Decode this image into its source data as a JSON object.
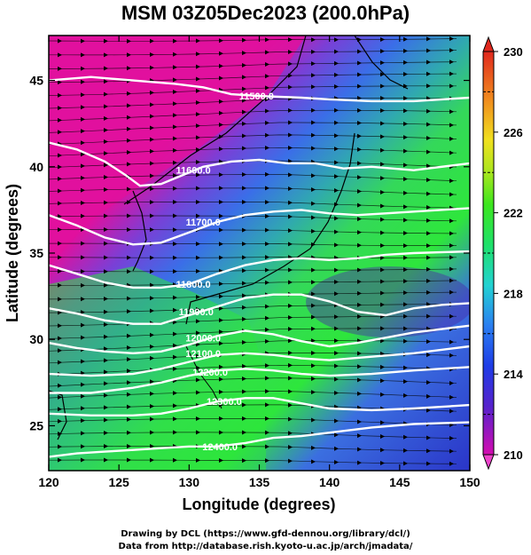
{
  "title": "MSM 03Z05Dec2023 (200.0hPa)",
  "chart_data": {
    "type": "map",
    "x_axis": {
      "label": "Longitude (degrees)",
      "range": [
        120,
        150
      ],
      "ticks": [
        120,
        125,
        130,
        135,
        140,
        145,
        150
      ]
    },
    "y_axis": {
      "label": "Latitude  (degrees)",
      "range": [
        22.4,
        47.6
      ],
      "ticks": [
        25,
        30,
        35,
        40,
        45
      ]
    },
    "colorbar": {
      "range": [
        210,
        230
      ],
      "ticks": [
        210,
        214,
        218,
        222,
        226,
        230
      ],
      "dashed_levels": [
        212,
        216,
        220,
        224,
        228
      ]
    },
    "contours": [
      {
        "label": "11500.0",
        "label_pos": [
          134.8,
          44.1
        ],
        "points": [
          [
            120,
            45.0
          ],
          [
            123,
            45.2
          ],
          [
            126,
            45.0
          ],
          [
            129,
            44.8
          ],
          [
            131,
            44.6
          ],
          [
            133,
            44.2
          ],
          [
            135,
            44.1
          ],
          [
            138,
            44.0
          ],
          [
            140,
            43.9
          ],
          [
            143,
            43.8
          ],
          [
            146,
            43.8
          ],
          [
            150,
            44.0
          ]
        ]
      },
      {
        "label": "11600.0",
        "label_pos": [
          130.3,
          39.8
        ],
        "points": [
          [
            120,
            41.4
          ],
          [
            122,
            41.0
          ],
          [
            124,
            40.3
          ],
          [
            125.5,
            39.5
          ],
          [
            126.5,
            38.9
          ],
          [
            128,
            39.0
          ],
          [
            129.5,
            39.5
          ],
          [
            131,
            40.0
          ],
          [
            133,
            40.3
          ],
          [
            135,
            40.4
          ],
          [
            137,
            40.2
          ],
          [
            139,
            40.2
          ],
          [
            141,
            39.9
          ],
          [
            143,
            40.0
          ],
          [
            146,
            39.8
          ],
          [
            150,
            40.2
          ]
        ]
      },
      {
        "label": "11700.0",
        "label_pos": [
          131.0,
          36.8
        ],
        "points": [
          [
            120,
            37.2
          ],
          [
            122,
            36.6
          ],
          [
            124,
            35.9
          ],
          [
            126,
            35.5
          ],
          [
            128,
            35.6
          ],
          [
            130,
            36.2
          ],
          [
            132,
            36.8
          ],
          [
            134,
            37.2
          ],
          [
            136,
            37.4
          ],
          [
            138,
            37.5
          ],
          [
            140,
            37.3
          ],
          [
            142,
            37.2
          ],
          [
            144,
            37.3
          ],
          [
            146,
            37.4
          ],
          [
            150,
            37.6
          ]
        ]
      },
      {
        "label": "11800.0",
        "label_pos": [
          130.3,
          33.2
        ],
        "points": [
          [
            120,
            34.3
          ],
          [
            122,
            33.8
          ],
          [
            124,
            33.3
          ],
          [
            126,
            33.0
          ],
          [
            128,
            33.0
          ],
          [
            130,
            33.2
          ],
          [
            132,
            33.8
          ],
          [
            134,
            34.3
          ],
          [
            136,
            34.6
          ],
          [
            138,
            34.7
          ],
          [
            140,
            34.6
          ],
          [
            142,
            34.7
          ],
          [
            144,
            34.9
          ],
          [
            146,
            35.0
          ],
          [
            150,
            35.1
          ]
        ]
      },
      {
        "label": "11900.0",
        "label_pos": [
          130.5,
          31.6
        ],
        "points": [
          [
            120,
            31.8
          ],
          [
            122,
            31.5
          ],
          [
            124,
            31.1
          ],
          [
            126,
            30.9
          ],
          [
            128,
            30.9
          ],
          [
            130,
            31.4
          ],
          [
            132,
            31.9
          ],
          [
            134,
            32.4
          ],
          [
            136,
            32.6
          ],
          [
            138,
            32.6
          ],
          [
            140,
            32.2
          ],
          [
            142,
            31.6
          ],
          [
            144,
            31.4
          ],
          [
            146,
            31.8
          ],
          [
            148,
            32.0
          ],
          [
            150,
            32.1
          ]
        ]
      },
      {
        "label": "12000.0",
        "label_pos": [
          131.0,
          30.1
        ],
        "points": [
          [
            120,
            29.8
          ],
          [
            122,
            29.5
          ],
          [
            124,
            29.3
          ],
          [
            126,
            29.2
          ],
          [
            128,
            29.3
          ],
          [
            130,
            29.7
          ],
          [
            132,
            30.2
          ],
          [
            134,
            30.5
          ],
          [
            136,
            30.3
          ],
          [
            138,
            29.9
          ],
          [
            140,
            29.6
          ],
          [
            142,
            29.8
          ],
          [
            144,
            30.1
          ],
          [
            146,
            30.4
          ],
          [
            150,
            30.8
          ]
        ]
      },
      {
        "label": "12100.0",
        "label_pos": [
          131.0,
          29.2
        ],
        "points": [
          [
            120,
            28.0
          ],
          [
            123,
            27.9
          ],
          [
            126,
            28.0
          ],
          [
            128,
            28.3
          ],
          [
            130,
            28.7
          ],
          [
            132,
            29.1
          ],
          [
            134,
            29.2
          ],
          [
            136,
            29.1
          ],
          [
            138,
            28.9
          ],
          [
            140,
            28.8
          ],
          [
            143,
            29.0
          ],
          [
            146,
            29.2
          ],
          [
            150,
            29.6
          ]
        ]
      },
      {
        "label": "12200.0",
        "label_pos": [
          131.5,
          28.1
        ],
        "points": [
          [
            120,
            26.9
          ],
          [
            123,
            26.9
          ],
          [
            126,
            27.2
          ],
          [
            128,
            27.5
          ],
          [
            130,
            27.9
          ],
          [
            132,
            28.2
          ],
          [
            134,
            28.3
          ],
          [
            136,
            28.2
          ],
          [
            138,
            28.0
          ],
          [
            140,
            27.9
          ],
          [
            143,
            28.0
          ],
          [
            146,
            28.2
          ],
          [
            150,
            28.4
          ]
        ]
      },
      {
        "label": "12300.0",
        "label_pos": [
          132.5,
          26.4
        ],
        "points": [
          [
            120,
            25.7
          ],
          [
            123,
            25.6
          ],
          [
            126,
            25.6
          ],
          [
            128,
            25.7
          ],
          [
            130,
            26.0
          ],
          [
            132,
            26.4
          ],
          [
            134,
            26.6
          ],
          [
            136,
            26.6
          ],
          [
            138,
            26.3
          ],
          [
            140,
            26.0
          ],
          [
            143,
            25.9
          ],
          [
            146,
            26.0
          ],
          [
            150,
            26.2
          ]
        ]
      },
      {
        "label": "12400.0",
        "label_pos": [
          132.2,
          23.8
        ],
        "points": [
          [
            120,
            23.2
          ],
          [
            122,
            23.4
          ],
          [
            124,
            23.5
          ],
          [
            126,
            23.6
          ],
          [
            128,
            23.7
          ],
          [
            130,
            23.8
          ],
          [
            132,
            23.8
          ],
          [
            134,
            24.0
          ],
          [
            136,
            24.3
          ],
          [
            138,
            24.4
          ],
          [
            140,
            24.6
          ],
          [
            143,
            24.9
          ],
          [
            146,
            25.1
          ],
          [
            150,
            25.2
          ]
        ]
      }
    ]
  },
  "footer": {
    "line1": "Drawing by DCL (https://www.gfd-dennou.org/library/dcl/)",
    "line2": "Data from http://database.rish.kyoto-u.ac.jp/arch/jmadata/"
  }
}
